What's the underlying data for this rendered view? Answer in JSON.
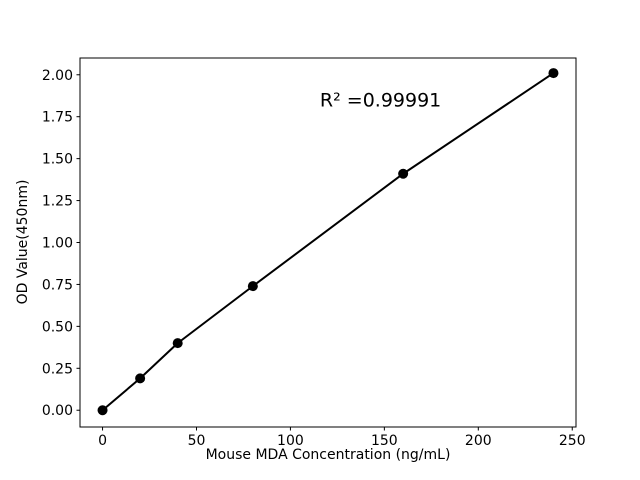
{
  "chart_data": {
    "type": "line",
    "title": "",
    "xlabel": "Mouse MDA Concentration (ng/mL)",
    "ylabel": "OD Value(450nm)",
    "series": [
      {
        "name": "standard-curve",
        "x": [
          0,
          20,
          40,
          80,
          160,
          240
        ],
        "y": [
          0.0,
          0.19,
          0.4,
          0.74,
          1.41,
          2.01
        ]
      }
    ],
    "xlim": [
      -12,
      252
    ],
    "ylim": [
      -0.1,
      2.1
    ],
    "xticks": [
      0,
      50,
      100,
      150,
      200,
      250
    ],
    "xtick_labels": [
      "0",
      "50",
      "100",
      "150",
      "200",
      "250"
    ],
    "yticks": [
      0.0,
      0.25,
      0.5,
      0.75,
      1.0,
      1.25,
      1.5,
      1.75,
      2.0
    ],
    "ytick_labels": [
      "0.00",
      "0.25",
      "0.50",
      "0.75",
      "1.00",
      "1.25",
      "1.50",
      "1.75",
      "2.00"
    ],
    "grid": false,
    "legend": null,
    "annotation": {
      "text": "R² =0.99991",
      "x": 148,
      "y": 1.81
    },
    "line_color": "#000000",
    "marker_color": "#000000",
    "marker": "circle",
    "marker_radius": 5,
    "line_width": 2,
    "axis_color": "#000000",
    "background_color": "#ffffff"
  }
}
